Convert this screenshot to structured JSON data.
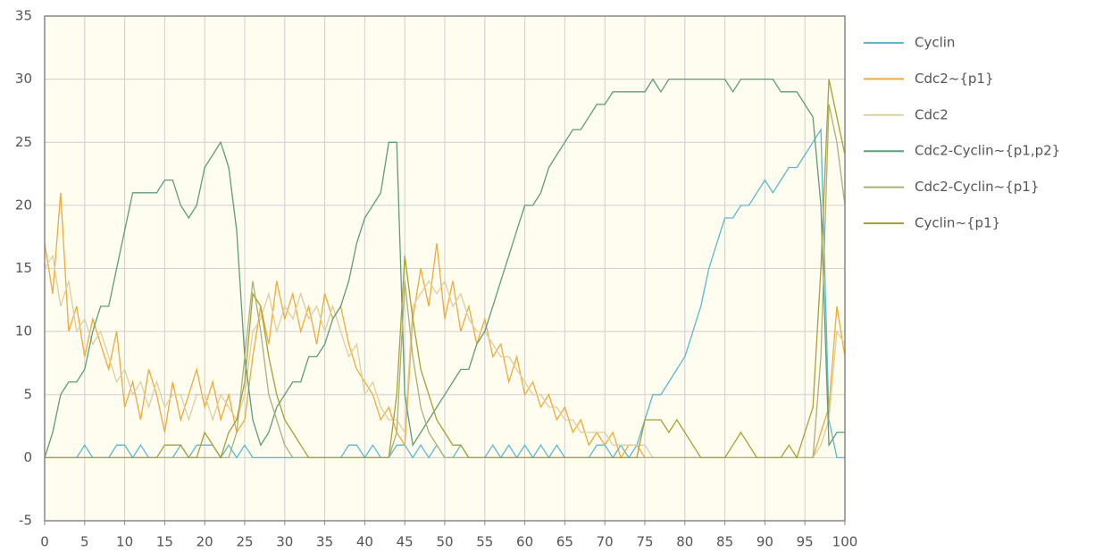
{
  "chart_data": {
    "type": "line",
    "x": [
      0,
      1,
      2,
      3,
      4,
      5,
      6,
      7,
      8,
      9,
      10,
      11,
      12,
      13,
      14,
      15,
      16,
      17,
      18,
      19,
      20,
      21,
      22,
      23,
      24,
      25,
      26,
      27,
      28,
      29,
      30,
      31,
      32,
      33,
      34,
      35,
      36,
      37,
      38,
      39,
      40,
      41,
      42,
      43,
      44,
      45,
      46,
      47,
      48,
      49,
      50,
      51,
      52,
      53,
      54,
      55,
      56,
      57,
      58,
      59,
      60,
      61,
      62,
      63,
      64,
      65,
      66,
      67,
      68,
      69,
      70,
      71,
      72,
      73,
      74,
      75,
      76,
      77,
      78,
      79,
      80,
      81,
      82,
      83,
      84,
      85,
      86,
      87,
      88,
      89,
      90,
      91,
      92,
      93,
      94,
      95,
      96,
      97,
      98,
      99,
      100
    ],
    "series": [
      {
        "name": "Cyclin",
        "color": "#5bb8cc",
        "values": [
          0,
          0,
          0,
          0,
          0,
          1,
          0,
          0,
          0,
          1,
          1,
          0,
          1,
          0,
          0,
          0,
          0,
          1,
          0,
          1,
          1,
          1,
          0,
          1,
          0,
          1,
          0,
          0,
          0,
          0,
          0,
          0,
          0,
          0,
          0,
          0,
          0,
          0,
          1,
          1,
          0,
          1,
          0,
          0,
          1,
          1,
          0,
          1,
          0,
          1,
          0,
          0,
          1,
          0,
          0,
          0,
          1,
          0,
          1,
          0,
          1,
          0,
          1,
          0,
          1,
          0,
          0,
          0,
          0,
          1,
          1,
          0,
          1,
          0,
          1,
          3,
          5,
          5,
          6,
          7,
          8,
          10,
          12,
          15,
          17,
          19,
          19,
          20,
          20,
          21,
          22,
          21,
          22,
          23,
          23,
          24,
          25,
          26,
          3,
          0,
          0
        ]
      },
      {
        "name": "Cdc2~{p1}",
        "color": "#f0aa38",
        "values": [
          17,
          13,
          21,
          10,
          12,
          8,
          11,
          9,
          7,
          10,
          4,
          6,
          3,
          7,
          5,
          2,
          6,
          3,
          5,
          7,
          4,
          6,
          3,
          5,
          2,
          3,
          8,
          12,
          9,
          14,
          11,
          13,
          10,
          12,
          9,
          13,
          11,
          12,
          9,
          7,
          6,
          5,
          3,
          4,
          2,
          1,
          11,
          15,
          12,
          17,
          11,
          14,
          10,
          12,
          9,
          11,
          8,
          9,
          6,
          8,
          5,
          6,
          4,
          5,
          3,
          4,
          2,
          3,
          1,
          2,
          1,
          2,
          0,
          1,
          1,
          0,
          0,
          0,
          0,
          0,
          0,
          0,
          0,
          0,
          0,
          0,
          0,
          0,
          0,
          0,
          0,
          0,
          0,
          0,
          0,
          0,
          0,
          2,
          4,
          12,
          8
        ]
      },
      {
        "name": "Cdc2",
        "color": "#dccfa2",
        "values": [
          15,
          16,
          12,
          14,
          10,
          11,
          9,
          10,
          8,
          6,
          7,
          5,
          6,
          4,
          6,
          4,
          5,
          5,
          3,
          5,
          5,
          3,
          5,
          4,
          3,
          5,
          10,
          11,
          13,
          10,
          12,
          11,
          13,
          11,
          12,
          10,
          12,
          10,
          8,
          9,
          5,
          6,
          4,
          3,
          3,
          2,
          12,
          13,
          14,
          13,
          14,
          12,
          13,
          11,
          10,
          10,
          9,
          8,
          8,
          7,
          6,
          5,
          5,
          4,
          4,
          3,
          3,
          2,
          2,
          2,
          2,
          1,
          1,
          1,
          1,
          1,
          0,
          0,
          0,
          0,
          0,
          0,
          0,
          0,
          0,
          0,
          0,
          0,
          0,
          0,
          0,
          0,
          0,
          0,
          0,
          0,
          0,
          1,
          3,
          10,
          9
        ]
      },
      {
        "name": "Cdc2-Cyclin~{p1,p2}",
        "color": "#5e9c7c",
        "values": [
          0,
          2,
          5,
          6,
          6,
          7,
          10,
          12,
          12,
          15,
          18,
          21,
          21,
          21,
          21,
          22,
          22,
          20,
          19,
          20,
          23,
          24,
          25,
          23,
          18,
          8,
          3,
          1,
          2,
          4,
          5,
          6,
          6,
          8,
          8,
          9,
          11,
          12,
          14,
          17,
          19,
          20,
          21,
          25,
          25,
          5,
          1,
          2,
          3,
          4,
          5,
          6,
          7,
          7,
          9,
          10,
          12,
          14,
          16,
          18,
          20,
          20,
          21,
          23,
          24,
          25,
          26,
          26,
          27,
          28,
          28,
          29,
          29,
          29,
          29,
          29,
          30,
          29,
          30,
          30,
          30,
          30,
          30,
          30,
          30,
          30,
          29,
          30,
          30,
          30,
          30,
          30,
          29,
          29,
          29,
          28,
          27,
          20,
          1,
          2,
          2
        ]
      },
      {
        "name": "Cdc2-Cyclin~{p1}",
        "color": "#aab07c",
        "values": [
          0,
          0,
          0,
          0,
          0,
          0,
          0,
          0,
          0,
          0,
          0,
          0,
          0,
          0,
          0,
          0,
          0,
          0,
          0,
          0,
          0,
          0,
          0,
          0,
          2,
          8,
          14,
          10,
          5,
          3,
          1,
          0,
          0,
          0,
          0,
          0,
          0,
          0,
          0,
          0,
          0,
          0,
          0,
          0,
          2,
          14,
          8,
          4,
          2,
          1,
          0,
          0,
          0,
          0,
          0,
          0,
          0,
          0,
          0,
          0,
          0,
          0,
          0,
          0,
          0,
          0,
          0,
          0,
          0,
          0,
          0,
          0,
          0,
          0,
          0,
          0,
          0,
          0,
          0,
          0,
          0,
          0,
          0,
          0,
          0,
          0,
          0,
          0,
          0,
          0,
          0,
          0,
          0,
          0,
          0,
          0,
          0,
          8,
          28,
          25,
          20
        ]
      },
      {
        "name": "Cyclin~{p1}",
        "color": "#a8a032",
        "values": [
          0,
          0,
          0,
          0,
          0,
          0,
          0,
          0,
          0,
          0,
          0,
          0,
          0,
          0,
          0,
          1,
          1,
          1,
          0,
          0,
          2,
          1,
          0,
          2,
          3,
          6,
          13,
          12,
          8,
          5,
          3,
          2,
          1,
          0,
          0,
          0,
          0,
          0,
          0,
          0,
          0,
          0,
          0,
          0,
          5,
          16,
          11,
          7,
          5,
          3,
          2,
          1,
          1,
          0,
          0,
          0,
          0,
          0,
          0,
          0,
          0,
          0,
          0,
          0,
          0,
          0,
          0,
          0,
          0,
          0,
          0,
          0,
          0,
          0,
          0,
          3,
          3,
          3,
          2,
          3,
          2,
          1,
          0,
          0,
          0,
          0,
          1,
          2,
          1,
          0,
          0,
          0,
          0,
          1,
          0,
          2,
          4,
          15,
          30,
          27,
          24
        ]
      }
    ],
    "xlim": [
      0,
      100
    ],
    "xticks": [
      0,
      5,
      10,
      15,
      20,
      25,
      30,
      35,
      40,
      45,
      50,
      55,
      60,
      65,
      70,
      75,
      80,
      85,
      90,
      95,
      100
    ],
    "ylim": [
      -5,
      35
    ],
    "yticks": [
      -5,
      0,
      5,
      10,
      15,
      20,
      25,
      30,
      35
    ],
    "grid": true,
    "legend": "right"
  }
}
